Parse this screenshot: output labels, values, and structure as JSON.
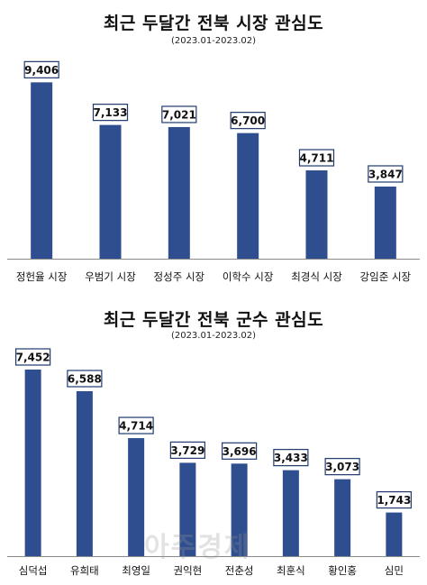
{
  "colors": {
    "bar": "#2e4e8f",
    "axis": "#8a8a8a",
    "label_border": "#1f3a6e"
  },
  "watermark": "아주경제",
  "chart_data": [
    {
      "type": "bar",
      "title": "최근 두달간 전북 시장 관심도",
      "subtitle": "(2023.01-2023.02)",
      "categories": [
        "정헌율 시장",
        "우범기 시장",
        "정성주 시장",
        "이학수 시장",
        "최경식 시장",
        "강임준 시장"
      ],
      "values": [
        9406,
        7133,
        7021,
        6700,
        4711,
        3847
      ],
      "value_labels": [
        "9,406",
        "7,133",
        "7,021",
        "6,700",
        "4,711",
        "3,847"
      ],
      "ylim": [
        0,
        10000
      ],
      "grid": false,
      "legend": "none"
    },
    {
      "type": "bar",
      "title": "최근 두달간 전북 군수 관심도",
      "subtitle": "(2023.01-2023.02)",
      "categories": [
        "심덕섭",
        "유희태",
        "최영일",
        "권익현",
        "전춘성",
        "최훈식",
        "황인홍",
        "심민"
      ],
      "values": [
        7452,
        6588,
        4714,
        3729,
        3696,
        3433,
        3073,
        1743
      ],
      "value_labels": [
        "7,452",
        "6,588",
        "4,714",
        "3,729",
        "3,696",
        "3,433",
        "3,073",
        "1,743"
      ],
      "ylim": [
        0,
        7452
      ],
      "grid": false,
      "legend": "none"
    }
  ]
}
